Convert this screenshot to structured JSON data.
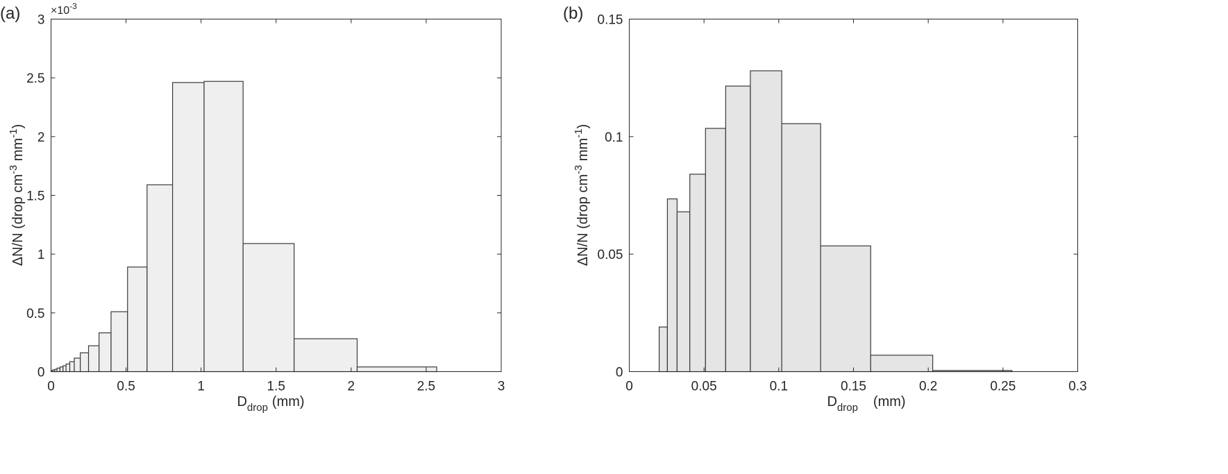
{
  "chart_data": [
    {
      "type": "bar",
      "panel_label": "(a)",
      "xlabel": {
        "main": "D",
        "sub": "drop",
        "unit": "(mm)"
      },
      "ylabel": {
        "main": "ΔN/N (drop  cm",
        "exp1": "-3",
        "mid": " mm",
        "exp2": "-1",
        "close": ")"
      },
      "y_multiplier": {
        "prefix": "×10",
        "exp": "-3"
      },
      "xlim": [
        0,
        3
      ],
      "ylim": [
        0,
        3
      ],
      "xticks": [
        "0",
        "0.5",
        "1",
        "1.5",
        "2",
        "2.5",
        "3"
      ],
      "yticks": [
        "0",
        "0.5",
        "1",
        "1.5",
        "2",
        "2.5",
        "3"
      ],
      "grid": false,
      "bar_color": "#efefef",
      "bins": [
        {
          "x0": 0.0,
          "x1": 0.012,
          "y": 0.01
        },
        {
          "x0": 0.012,
          "x1": 0.025,
          "y": 0.015
        },
        {
          "x0": 0.025,
          "x1": 0.04,
          "y": 0.02
        },
        {
          "x0": 0.04,
          "x1": 0.06,
          "y": 0.03
        },
        {
          "x0": 0.06,
          "x1": 0.08,
          "y": 0.04
        },
        {
          "x0": 0.08,
          "x1": 0.1,
          "y": 0.05
        },
        {
          "x0": 0.1,
          "x1": 0.125,
          "y": 0.065
        },
        {
          "x0": 0.125,
          "x1": 0.155,
          "y": 0.085
        },
        {
          "x0": 0.155,
          "x1": 0.195,
          "y": 0.115
        },
        {
          "x0": 0.195,
          "x1": 0.25,
          "y": 0.16
        },
        {
          "x0": 0.25,
          "x1": 0.32,
          "y": 0.22
        },
        {
          "x0": 0.32,
          "x1": 0.4,
          "y": 0.33
        },
        {
          "x0": 0.4,
          "x1": 0.51,
          "y": 0.51
        },
        {
          "x0": 0.51,
          "x1": 0.64,
          "y": 0.89
        },
        {
          "x0": 0.64,
          "x1": 0.81,
          "y": 1.59
        },
        {
          "x0": 0.81,
          "x1": 1.02,
          "y": 2.46
        },
        {
          "x0": 1.02,
          "x1": 1.28,
          "y": 2.47
        },
        {
          "x0": 1.28,
          "x1": 1.62,
          "y": 1.09
        },
        {
          "x0": 1.62,
          "x1": 2.04,
          "y": 0.28
        },
        {
          "x0": 2.04,
          "x1": 2.57,
          "y": 0.04
        }
      ]
    },
    {
      "type": "bar",
      "panel_label": "(b)",
      "xlabel": {
        "main": "D",
        "sub": "drop",
        "unit": "(mm)"
      },
      "ylabel": {
        "main": "ΔN/N (drop  cm",
        "exp1": "-3",
        "mid": " mm",
        "exp2": "-1",
        "close": ")"
      },
      "xlim": [
        0,
        0.3
      ],
      "ylim": [
        0,
        0.15
      ],
      "xticks": [
        "0",
        "0.05",
        "0.1",
        "0.15",
        "0.2",
        "0.25",
        "0.3"
      ],
      "yticks": [
        "0",
        "0.05",
        "0.1",
        "0.15"
      ],
      "grid": false,
      "bar_color": "#e5e5e5",
      "bins": [
        {
          "x0": 0.02,
          "x1": 0.0255,
          "y": 0.019
        },
        {
          "x0": 0.0255,
          "x1": 0.032,
          "y": 0.0735
        },
        {
          "x0": 0.032,
          "x1": 0.0405,
          "y": 0.068
        },
        {
          "x0": 0.0405,
          "x1": 0.051,
          "y": 0.084
        },
        {
          "x0": 0.051,
          "x1": 0.0645,
          "y": 0.1035
        },
        {
          "x0": 0.0645,
          "x1": 0.081,
          "y": 0.1215
        },
        {
          "x0": 0.081,
          "x1": 0.102,
          "y": 0.128
        },
        {
          "x0": 0.102,
          "x1": 0.128,
          "y": 0.1055
        },
        {
          "x0": 0.128,
          "x1": 0.1615,
          "y": 0.0535
        },
        {
          "x0": 0.1615,
          "x1": 0.203,
          "y": 0.007
        },
        {
          "x0": 0.203,
          "x1": 0.256,
          "y": 0.0005
        }
      ]
    }
  ]
}
